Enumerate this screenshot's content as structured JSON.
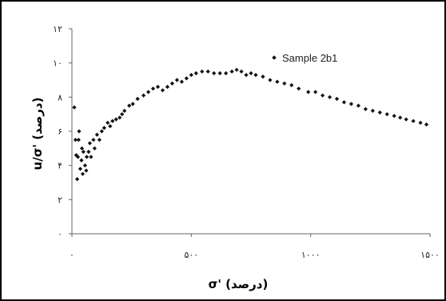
{
  "chart_data": {
    "type": "scatter",
    "title": "",
    "xlabel": "σ' (درصد)",
    "ylabel": "u/σ' (درصد)",
    "xlim": [
      0,
      1500
    ],
    "ylim": [
      0,
      12
    ],
    "x_ticks": [
      0,
      500,
      1000,
      1500
    ],
    "y_ticks": [
      0,
      2,
      4,
      6,
      8,
      10,
      12
    ],
    "x_tick_labels": [
      "۰",
      "۵۰۰",
      "۱۰۰۰",
      "۱۵۰۰"
    ],
    "y_tick_labels": [
      "۰",
      "۲",
      "۴",
      "۶",
      "۸",
      "۱۰",
      "۱۲"
    ],
    "grid": false,
    "legend_position": "top-right",
    "marker_color": "#111111",
    "series": [
      {
        "name": "Sample 2b1",
        "points": [
          [
            10,
            7.4
          ],
          [
            15,
            5.5
          ],
          [
            18,
            4.6
          ],
          [
            22,
            3.2
          ],
          [
            25,
            4.5
          ],
          [
            28,
            5.5
          ],
          [
            30,
            6.0
          ],
          [
            35,
            3.8
          ],
          [
            40,
            4.3
          ],
          [
            42,
            5.0
          ],
          [
            45,
            3.5
          ],
          [
            48,
            4.8
          ],
          [
            55,
            4.0
          ],
          [
            60,
            3.7
          ],
          [
            62,
            4.5
          ],
          [
            70,
            4.8
          ],
          [
            75,
            5.3
          ],
          [
            80,
            4.5
          ],
          [
            90,
            5.5
          ],
          [
            95,
            5.0
          ],
          [
            105,
            5.8
          ],
          [
            115,
            5.5
          ],
          [
            125,
            6.0
          ],
          [
            135,
            6.2
          ],
          [
            150,
            6.5
          ],
          [
            160,
            6.3
          ],
          [
            170,
            6.6
          ],
          [
            185,
            6.7
          ],
          [
            200,
            6.8
          ],
          [
            210,
            7.0
          ],
          [
            220,
            7.2
          ],
          [
            240,
            7.5
          ],
          [
            255,
            7.6
          ],
          [
            275,
            7.9
          ],
          [
            300,
            8.1
          ],
          [
            320,
            8.3
          ],
          [
            340,
            8.5
          ],
          [
            360,
            8.6
          ],
          [
            380,
            8.4
          ],
          [
            400,
            8.6
          ],
          [
            420,
            8.8
          ],
          [
            440,
            9.0
          ],
          [
            460,
            8.9
          ],
          [
            480,
            9.1
          ],
          [
            500,
            9.3
          ],
          [
            520,
            9.4
          ],
          [
            545,
            9.5
          ],
          [
            570,
            9.5
          ],
          [
            595,
            9.4
          ],
          [
            620,
            9.4
          ],
          [
            645,
            9.4
          ],
          [
            670,
            9.5
          ],
          [
            690,
            9.6
          ],
          [
            710,
            9.5
          ],
          [
            730,
            9.3
          ],
          [
            750,
            9.4
          ],
          [
            770,
            9.3
          ],
          [
            800,
            9.2
          ],
          [
            830,
            9.0
          ],
          [
            860,
            8.9
          ],
          [
            890,
            8.8
          ],
          [
            920,
            8.7
          ],
          [
            950,
            8.5
          ],
          [
            990,
            8.3
          ],
          [
            1020,
            8.3
          ],
          [
            1050,
            8.1
          ],
          [
            1080,
            8.0
          ],
          [
            1110,
            7.9
          ],
          [
            1140,
            7.7
          ],
          [
            1170,
            7.6
          ],
          [
            1200,
            7.5
          ],
          [
            1230,
            7.3
          ],
          [
            1260,
            7.2
          ],
          [
            1290,
            7.1
          ],
          [
            1320,
            7.0
          ],
          [
            1350,
            6.9
          ],
          [
            1375,
            6.8
          ],
          [
            1400,
            6.7
          ],
          [
            1430,
            6.6
          ],
          [
            1460,
            6.5
          ],
          [
            1485,
            6.4
          ]
        ]
      }
    ]
  }
}
